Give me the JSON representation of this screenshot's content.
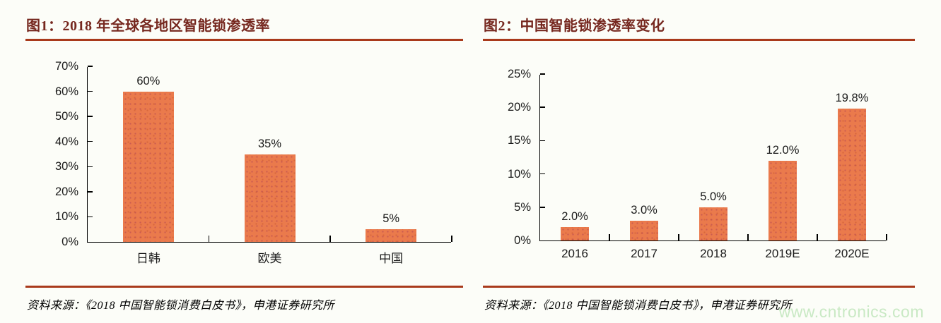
{
  "page": {
    "background": "#FCFDF8"
  },
  "colors": {
    "bar": "#EA7A4C",
    "title": "#76281F",
    "rule": "#A93A1C",
    "axis": "#000000",
    "text": "#1A1A1A",
    "watermark": "#C9E9C4"
  },
  "watermark": {
    "text": "www.cntronics.com"
  },
  "chart_data": [
    {
      "type": "bar",
      "title": "图1：2018 年全球各地区智能锁渗透率",
      "categories": [
        "日韩",
        "欧美",
        "中国"
      ],
      "values": [
        60,
        35,
        5
      ],
      "value_labels": [
        "60%",
        "35%",
        "5%"
      ],
      "ylim": [
        0,
        70
      ],
      "ytick_step": 10,
      "ytick_labels": [
        "0%",
        "10%",
        "20%",
        "30%",
        "40%",
        "50%",
        "60%",
        "70%"
      ],
      "grid": false,
      "legend_position": "none",
      "source": "资料来源：《2018 中国智能锁消费白皮书》，申港证券研究所"
    },
    {
      "type": "bar",
      "title": "图2：中国智能锁渗透率变化",
      "categories": [
        "2016",
        "2017",
        "2018",
        "2019E",
        "2020E"
      ],
      "values": [
        2,
        3,
        5,
        12,
        19.8
      ],
      "value_labels": [
        "2.0%",
        "3.0%",
        "5.0%",
        "12.0%",
        "19.8%"
      ],
      "ylim": [
        0,
        25
      ],
      "ytick_step": 5,
      "ytick_labels": [
        "0%",
        "5%",
        "10%",
        "15%",
        "20%",
        "25%"
      ],
      "grid": false,
      "legend_position": "none",
      "source": "资料来源：《2018 中国智能锁消费白皮书》，申港证券研究所"
    }
  ]
}
